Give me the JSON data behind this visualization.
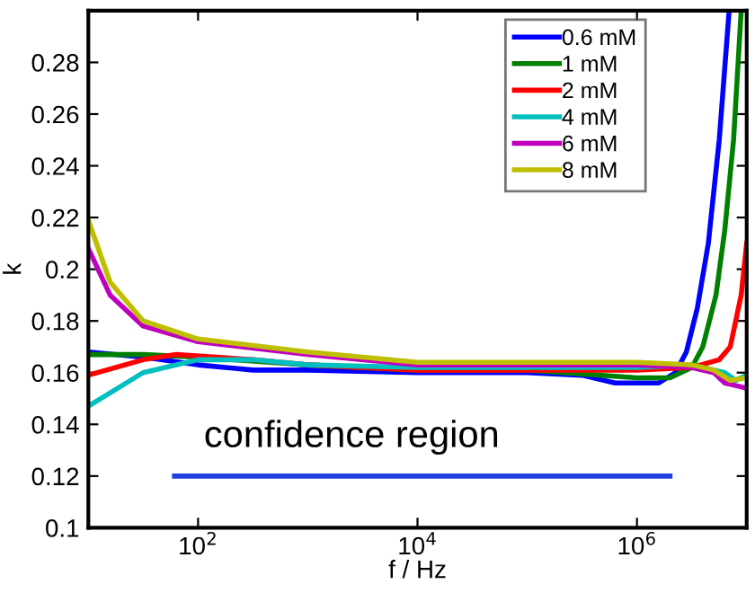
{
  "chart_data": {
    "type": "line",
    "xlabel": "f / Hz",
    "ylabel": "k",
    "log": "x",
    "xlim": [
      10,
      10000000
    ],
    "ylim": [
      0.1,
      0.3
    ],
    "xticks": [
      {
        "value": 100,
        "label": "10$^{2}$"
      },
      {
        "value": 10000,
        "label": "10$^{4}$"
      },
      {
        "value": 1000000,
        "label": "10$^{6}$"
      }
    ],
    "yticks": [
      0.1,
      0.12,
      0.14,
      0.16,
      0.18,
      0.2,
      0.22,
      0.24,
      0.26,
      0.28
    ],
    "grid": false,
    "legend": "top right",
    "line_style": "solid",
    "marker": "none",
    "annotations": [
      "confidence region"
    ],
    "series": [
      {
        "name": "0.6 mM",
        "color": "#0000ff",
        "x": [
          10,
          31.6,
          100,
          316,
          1000,
          10000,
          100000,
          316000,
          631000,
          1580000,
          2240000,
          2820000,
          3550000,
          4470000,
          5620000,
          6920000
        ],
        "values": [
          0.168,
          0.166,
          0.163,
          0.161,
          0.161,
          0.16,
          0.16,
          0.159,
          0.156,
          0.156,
          0.16,
          0.168,
          0.185,
          0.21,
          0.25,
          0.3
        ]
      },
      {
        "name": "1 mM",
        "color": "#008000",
        "x": [
          10,
          31.6,
          100,
          1000,
          10000,
          100000,
          1000000,
          2000000,
          3160000,
          3980000,
          5250000,
          6310000,
          7590000,
          8910000
        ],
        "values": [
          0.167,
          0.167,
          0.166,
          0.163,
          0.161,
          0.161,
          0.158,
          0.158,
          0.162,
          0.17,
          0.19,
          0.215,
          0.25,
          0.3
        ]
      },
      {
        "name": "2 mM",
        "color": "#ff0000",
        "x": [
          10,
          31.6,
          63.1,
          316,
          1000,
          10000,
          100000,
          1000000,
          3160000,
          5620000,
          7080000,
          8910000,
          10000000
        ],
        "values": [
          0.159,
          0.165,
          0.167,
          0.165,
          0.163,
          0.161,
          0.161,
          0.161,
          0.162,
          0.165,
          0.17,
          0.19,
          0.21
        ]
      },
      {
        "name": "4 mM",
        "color": "#00bfbf",
        "x": [
          10,
          31.6,
          100,
          316,
          1000,
          10000,
          100000,
          1000000,
          3160000,
          6310000,
          7940000,
          10000000
        ],
        "values": [
          0.147,
          0.16,
          0.165,
          0.165,
          0.163,
          0.162,
          0.162,
          0.162,
          0.163,
          0.16,
          0.157,
          0.159
        ]
      },
      {
        "name": "6 mM",
        "color": "#bf00bf",
        "x": [
          10,
          15.8,
          31.6,
          100,
          1000,
          10000,
          100000,
          1000000,
          3160000,
          5010000,
          6310000,
          7940000,
          10000000
        ],
        "values": [
          0.208,
          0.19,
          0.178,
          0.172,
          0.167,
          0.163,
          0.163,
          0.163,
          0.162,
          0.16,
          0.156,
          0.155,
          0.154
        ]
      },
      {
        "name": "8 mM",
        "color": "#bfbf00",
        "x": [
          10,
          15.8,
          31.6,
          100,
          1000,
          10000,
          100000,
          1000000,
          3160000,
          5010000,
          7080000,
          10000000
        ],
        "values": [
          0.219,
          0.195,
          0.18,
          0.173,
          0.168,
          0.164,
          0.164,
          0.164,
          0.163,
          0.161,
          0.157,
          0.158
        ]
      },
      {
        "color": "#1f3fdf",
        "x": [
          61,
          2000000
        ],
        "values": [
          0.12,
          0.12
        ]
      }
    ]
  }
}
